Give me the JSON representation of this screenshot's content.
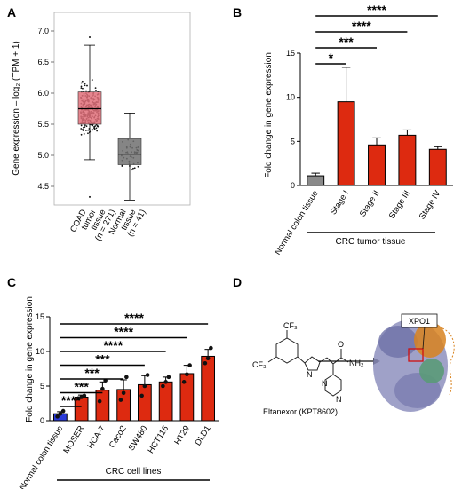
{
  "panels": {
    "A": {
      "letter": "A"
    },
    "B": {
      "letter": "B"
    },
    "C": {
      "letter": "C"
    },
    "D": {
      "letter": "D"
    }
  },
  "colors": {
    "tumor": "#e0707a",
    "normal": "#707070",
    "bar_red": "#dd2a10",
    "bar_gray": "#8a8a8a",
    "bar_blue": "#2a3ad8",
    "red_text": "#d01010",
    "protein": "#7b7fb0",
    "protein_orange": "#d8821e",
    "protein_green": "#5a9a78"
  },
  "chart_data": [
    {
      "panel": "A",
      "type": "box",
      "ylabel": "Gene expression – log₂ (TPM + 1)",
      "ylim": [
        4.2,
        7.3
      ],
      "yticks": [
        "4.5",
        "5.0",
        "5.5",
        "6.0",
        "6.5",
        "7.0"
      ],
      "categories": [
        {
          "lines": [
            "COAD",
            "tumor",
            "tissue",
            "(n = 271)"
          ],
          "color": "red"
        },
        {
          "lines": [
            "Normal",
            "tissue",
            "(n = 41)"
          ],
          "color": "black"
        }
      ],
      "boxes": [
        {
          "whisker_low": 4.93,
          "q1": 5.5,
          "median": 5.75,
          "q3": 6.02,
          "whisker_high": 6.77,
          "outliers": [
            4.33,
            6.9
          ],
          "n_points": 271
        },
        {
          "whisker_low": 4.28,
          "q1": 4.85,
          "median": 5.02,
          "q3": 5.27,
          "whisker_high": 5.68,
          "outliers": [],
          "n_points": 41
        }
      ]
    },
    {
      "panel": "B",
      "type": "bar",
      "ylabel": "Fold change in gene expression",
      "ylim": [
        0,
        15
      ],
      "yticks": [
        "0",
        "5",
        "10",
        "15"
      ],
      "categories": [
        "Normal colon tissue",
        "Stage I",
        "Stage II",
        "Stage III",
        "Stage IV"
      ],
      "values": [
        1.1,
        9.5,
        4.6,
        5.7,
        4.1
      ],
      "errors": [
        0.3,
        3.9,
        0.8,
        0.6,
        0.3
      ],
      "group_label": "CRC tumor tissue",
      "significance": [
        {
          "to": 1,
          "label": "*"
        },
        {
          "to": 2,
          "label": "***"
        },
        {
          "to": 3,
          "label": "****"
        },
        {
          "to": 4,
          "label": "****"
        }
      ]
    },
    {
      "panel": "C",
      "type": "bar",
      "ylabel": "Fold change in gene expression",
      "ylim": [
        0,
        15
      ],
      "yticks": [
        "0",
        "5",
        "10",
        "15"
      ],
      "categories": [
        "Normal colon tissue",
        "MOSER",
        "HCA-7",
        "Caco2",
        "SW480",
        "HCT116",
        "HT29",
        "DLD1"
      ],
      "values": [
        1.0,
        3.4,
        4.4,
        4.5,
        5.2,
        5.6,
        6.8,
        9.3
      ],
      "errors": [
        0.3,
        0.3,
        1.2,
        1.4,
        1.3,
        0.7,
        1.2,
        1.0
      ],
      "points": [
        [
          0.6,
          1.0,
          1.4
        ],
        [
          3.2,
          3.4,
          3.6
        ],
        [
          2.8,
          4.6,
          5.8
        ],
        [
          3.0,
          4.0,
          6.3
        ],
        [
          3.6,
          5.0,
          6.6
        ],
        [
          5.0,
          5.6,
          6.3
        ],
        [
          5.6,
          6.7,
          8.0
        ],
        [
          8.3,
          9.0,
          10.5
        ]
      ],
      "group_label": "CRC cell lines",
      "significance": [
        {
          "to": 1,
          "label": "****"
        },
        {
          "to": 2,
          "label": "***"
        },
        {
          "to": 3,
          "label": "***"
        },
        {
          "to": 4,
          "label": "***"
        },
        {
          "to": 5,
          "label": "****"
        },
        {
          "to": 6,
          "label": "****"
        },
        {
          "to": 7,
          "label": "****"
        }
      ]
    }
  ],
  "panel_d": {
    "compound_label": "Eltanexor (KPT8602)",
    "protein_label": "XPO1",
    "atom_labels": {
      "cf3": "CF₃",
      "nh2": "NH₂",
      "n": "N",
      "o": "O"
    }
  }
}
